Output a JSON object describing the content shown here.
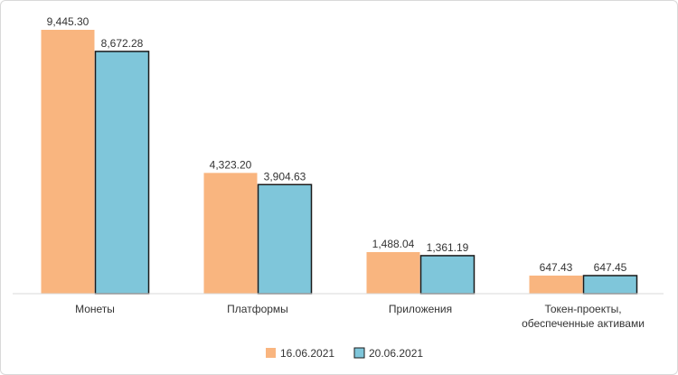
{
  "chart_data": {
    "type": "bar",
    "categories": [
      [
        "Монеты"
      ],
      [
        "Платформы"
      ],
      [
        "Приложения"
      ],
      [
        "Токен-проекты,",
        "обеспеченные активами"
      ]
    ],
    "series": [
      {
        "name": "16.06.2021",
        "color": "#F9B57F",
        "values": [
          9445.3,
          4323.2,
          1488.04,
          647.43
        ],
        "labels": [
          "9,445.30",
          "4,323.20",
          "1,488.04",
          "647.43"
        ]
      },
      {
        "name": "20.06.2021",
        "color": "#7FC6DA",
        "values": [
          8672.28,
          3904.63,
          1361.19,
          647.45
        ],
        "labels": [
          "8,672.28",
          "3,904.63",
          "1,361.19",
          "647.45"
        ]
      }
    ],
    "ylim": [
      0,
      9445.3
    ],
    "grid": false,
    "legend_position": "bottom-center"
  }
}
